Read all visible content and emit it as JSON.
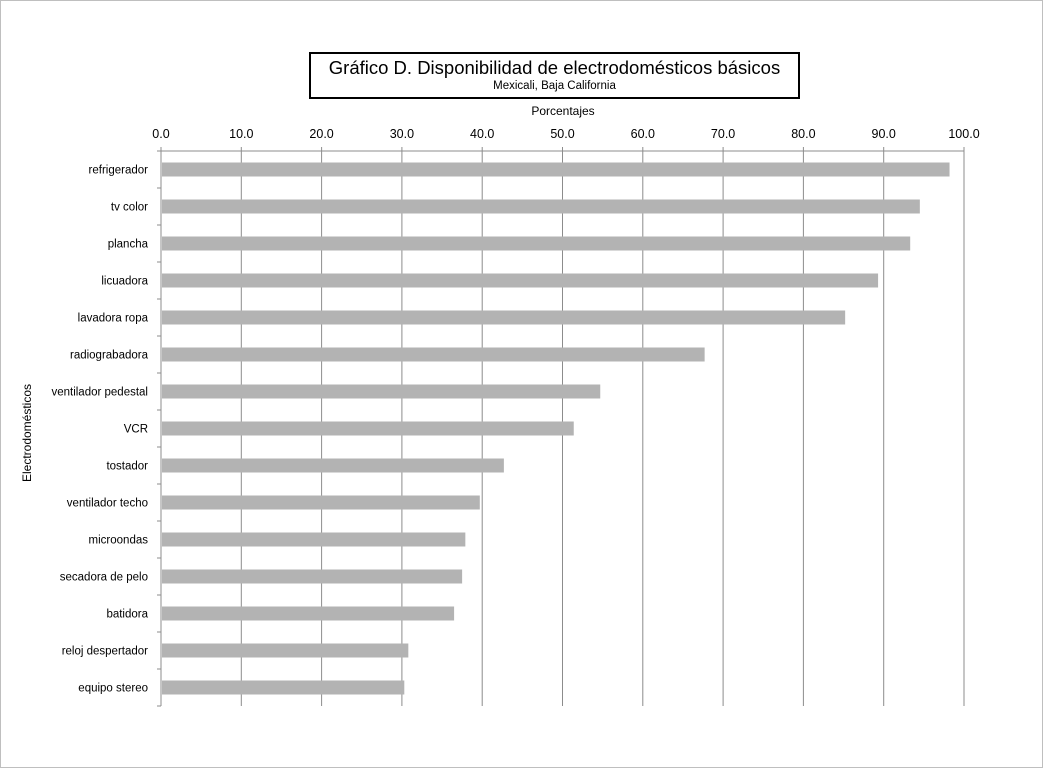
{
  "chart_data": {
    "type": "bar",
    "orientation": "horizontal",
    "title": "Gráfico D.  Disponibilidad de electrodomésticos básicos",
    "subtitle": "Mexicali, Baja California",
    "xlabel": "Porcentajes",
    "ylabel": "Electrodomésticos",
    "xlim": [
      0,
      100
    ],
    "x_ticks": [
      "0.0",
      "10.0",
      "20.0",
      "30.0",
      "40.0",
      "50.0",
      "60.0",
      "70.0",
      "80.0",
      "90.0",
      "100.0"
    ],
    "x_axis_position": "top",
    "grid": true,
    "legend": false,
    "bar_color": "#b3b3b3",
    "categories": [
      "refrigerador",
      "tv color",
      "plancha",
      "licuadora",
      "lavadora ropa",
      "radiograbadora",
      "ventilador pedestal",
      "VCR",
      "tostador",
      "ventilador techo",
      "microondas",
      "secadora de pelo",
      "batidora",
      "reloj despertador",
      "equipo stereo"
    ],
    "values": [
      98.2,
      94.5,
      93.3,
      89.3,
      85.2,
      67.7,
      54.7,
      51.4,
      42.7,
      39.7,
      37.9,
      37.5,
      36.5,
      30.8,
      30.3
    ]
  }
}
